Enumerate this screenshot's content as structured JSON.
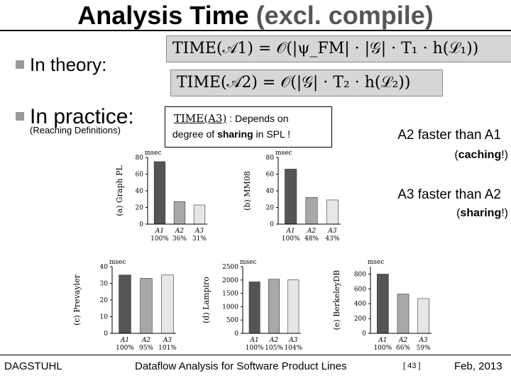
{
  "title": {
    "part1": "Analysis Time ",
    "part2": "(excl. compile)"
  },
  "bullets": {
    "theory": "In theory:",
    "practice": "In practice:",
    "practice_sub": "(Reaching Definitions)"
  },
  "formulas": {
    "a1": "TIME(𝒜1) = 𝒪(|ψ_FM| · |𝒢| · T₁ · h(ℒ₁))",
    "a2": "TIME(𝒜2) = 𝒪(|𝒢| · T₂ · h(ℒ₂))",
    "a3_label": "TIME(A3)",
    "a3_sep": " :  Depends on",
    "a3_text1": "degree of ",
    "a3_bold": "sharing",
    "a3_text2": " in SPL !"
  },
  "results": {
    "r1_a": "A2",
    "r1_mid": " faster than ",
    "r1_b": "A1",
    "r1_paren_open": "(",
    "r1_paren_word": "caching",
    "r1_paren_close": "!)",
    "r2_a": "A3",
    "r2_mid": " faster than ",
    "r2_b": "A2",
    "r2_paren_open": "(",
    "r2_paren_word": "sharing",
    "r2_paren_close": "!)"
  },
  "colors": {
    "bar_a1": "#555555",
    "bar_a2": "#a8a8a8",
    "bar_a3": "#e6e6e6"
  },
  "footer": {
    "left": "DAGSTUHL",
    "center": "Dataflow Analysis for Software Product Lines",
    "page": "[ 43 ]",
    "date": "Feb, 2013"
  },
  "chart_data": [
    {
      "type": "bar",
      "ylabel": "(a) Graph PL",
      "unit": "msec",
      "ylim": [
        0,
        80
      ],
      "yticks": [
        0,
        20,
        40,
        60,
        80
      ],
      "categories": [
        "A1",
        "A2",
        "A3"
      ],
      "values": [
        75,
        27,
        23
      ],
      "percent_labels": [
        "100%",
        "36%",
        "31%"
      ]
    },
    {
      "type": "bar",
      "ylabel": "(b) MM08",
      "unit": "msec",
      "ylim": [
        0,
        80
      ],
      "yticks": [
        0,
        20,
        40,
        60,
        80
      ],
      "categories": [
        "A1",
        "A2",
        "A3"
      ],
      "values": [
        66,
        32,
        29
      ],
      "percent_labels": [
        "100%",
        "48%",
        "43%"
      ]
    },
    {
      "type": "bar",
      "ylabel": "(c) Prevayler",
      "unit": "msec",
      "ylim": [
        0,
        40
      ],
      "yticks": [
        0,
        10,
        20,
        30,
        40
      ],
      "categories": [
        "A1",
        "A2",
        "A3"
      ],
      "values": [
        35,
        33,
        35
      ],
      "percent_labels": [
        "100%",
        "95%",
        "101%"
      ]
    },
    {
      "type": "bar",
      "ylabel": "(d) Lampiro",
      "unit": "msec",
      "ylim": [
        0,
        2500
      ],
      "yticks": [
        0,
        500,
        1000,
        1500,
        2000,
        2500
      ],
      "categories": [
        "A1",
        "A2",
        "A3"
      ],
      "values": [
        1930,
        2030,
        2010
      ],
      "percent_labels": [
        "100%",
        "105%",
        "104%"
      ]
    },
    {
      "type": "bar",
      "ylabel": "(e) BerkeleyDB",
      "unit": "msec",
      "ylim": [
        0,
        900
      ],
      "yticks": [
        0,
        200,
        400,
        600,
        800
      ],
      "categories": [
        "A1",
        "A2",
        "A3"
      ],
      "values": [
        800,
        530,
        470
      ],
      "percent_labels": [
        "100%",
        "66%",
        "59%"
      ]
    }
  ]
}
